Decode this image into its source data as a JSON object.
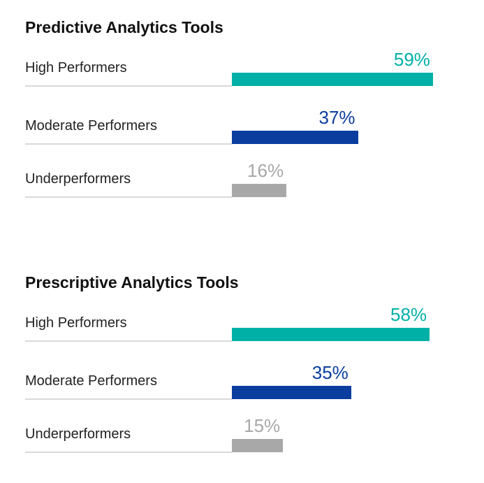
{
  "chart_data": [
    {
      "type": "bar",
      "orientation": "horizontal",
      "title": "Predictive Analytics Tools",
      "categories": [
        "High Performers",
        "Moderate Performers",
        "Underperformers"
      ],
      "values": [
        59,
        37,
        16
      ],
      "value_labels": [
        "59%",
        "37%",
        "16%"
      ],
      "colors": [
        "#00b0a6",
        "#0a3d9e",
        "#a8a8a8"
      ],
      "xlim": [
        0,
        100
      ],
      "grid": false
    },
    {
      "type": "bar",
      "orientation": "horizontal",
      "title": "Prescriptive Analytics Tools",
      "categories": [
        "High Performers",
        "Moderate Performers",
        "Underperformers"
      ],
      "values": [
        58,
        35,
        15
      ],
      "value_labels": [
        "58%",
        "35%",
        "15%"
      ],
      "colors": [
        "#00b0a6",
        "#0a3d9e",
        "#a8a8a8"
      ],
      "xlim": [
        0,
        100
      ],
      "grid": false
    }
  ]
}
